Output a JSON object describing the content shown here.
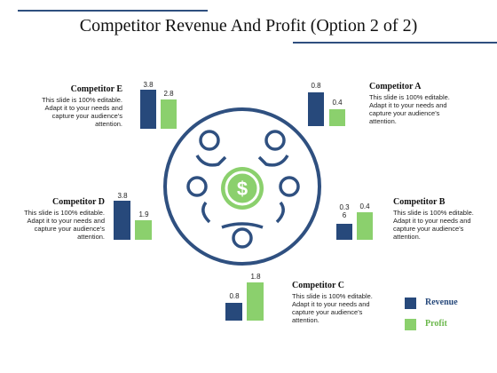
{
  "slide": {
    "title": "Competitor Revenue And Profit (Option 2 of 2)"
  },
  "colors": {
    "revenue": "#27497b",
    "profit": "#8bd06d",
    "accent_line": "#2f4f7f"
  },
  "icons": {
    "center": "dollar-coin-icon",
    "around": "people-around-table-icon"
  },
  "competitors": {
    "a": {
      "name": "Competitor A",
      "desc": "This slide is 100% editable. Adapt it to your needs and capture your audience's attention.",
      "revenue_label": "0.8",
      "profit_label": "0.4"
    },
    "b": {
      "name": "Competitor B",
      "desc": "This slide is 100% editable. Adapt it to your needs and capture your audience's attention.",
      "revenue_label": "0.3\n6",
      "profit_label": "0.4"
    },
    "c": {
      "name": "Competitor C",
      "desc": "This slide is 100% editable. Adapt it to your needs and capture your audience's attention.",
      "revenue_label": "0.8",
      "profit_label": "1.8"
    },
    "d": {
      "name": "Competitor D",
      "desc": "This slide is 100% editable. Adapt it to your needs and capture your audience's attention.",
      "revenue_label": "3.8",
      "profit_label": "1.9"
    },
    "e": {
      "name": "Competitor E",
      "desc": "This slide is 100% editable. Adapt it to your needs and capture your audience's attention.",
      "revenue_label": "3.8",
      "profit_label": "2.8"
    }
  },
  "legend": {
    "revenue": "Revenue",
    "profit": "Profit"
  },
  "chart_data": {
    "type": "bar",
    "categories": [
      "Competitor A",
      "Competitor B",
      "Competitor C",
      "Competitor D",
      "Competitor E"
    ],
    "series": [
      {
        "name": "Revenue",
        "values": [
          0.8,
          0.36,
          0.8,
          3.8,
          3.8
        ]
      },
      {
        "name": "Profit",
        "values": [
          0.4,
          0.4,
          1.8,
          1.9,
          2.8
        ]
      }
    ]
  }
}
